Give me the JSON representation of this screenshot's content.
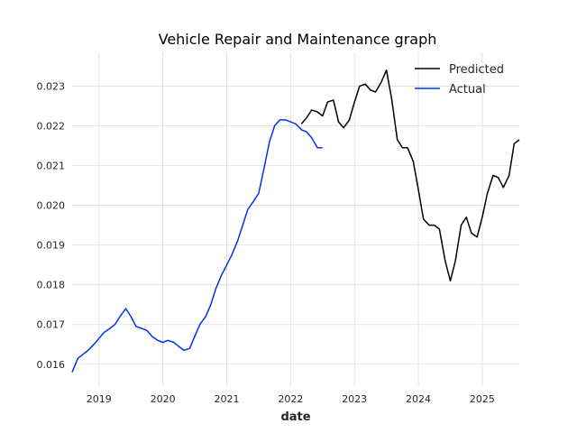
{
  "chart_data": {
    "type": "line",
    "title": "Vehicle Repair and Maintenance graph",
    "xlabel": "date",
    "ylabel": "",
    "xlim": [
      2018.58,
      2025.58
    ],
    "ylim": [
      0.01545,
      0.02385
    ],
    "xticks": [
      2019,
      2020,
      2021,
      2022,
      2023,
      2024,
      2025
    ],
    "xtick_labels": [
      "2019",
      "2020",
      "2021",
      "2022",
      "2023",
      "2024",
      "2025"
    ],
    "yticks": [
      0.016,
      0.017,
      0.018,
      0.019,
      0.02,
      0.021,
      0.022,
      0.023
    ],
    "ytick_labels": [
      "0.016",
      "0.017",
      "0.018",
      "0.019",
      "0.020",
      "0.021",
      "0.022",
      "0.023"
    ],
    "grid": true,
    "legend_position": "top-right",
    "series": [
      {
        "name": "Predicted",
        "color": "#000000",
        "x": [
          2022.17,
          2022.25,
          2022.33,
          2022.42,
          2022.5,
          2022.58,
          2022.67,
          2022.75,
          2022.83,
          2022.92,
          2023.0,
          2023.08,
          2023.17,
          2023.25,
          2023.33,
          2023.42,
          2023.5,
          2023.58,
          2023.67,
          2023.75,
          2023.83,
          2023.92,
          2024.0,
          2024.08,
          2024.17,
          2024.25,
          2024.33,
          2024.42,
          2024.5,
          2024.58,
          2024.67,
          2024.75,
          2024.83,
          2024.92,
          2025.0,
          2025.08,
          2025.17,
          2025.25,
          2025.33,
          2025.42,
          2025.5,
          2025.58
        ],
        "y": [
          0.02205,
          0.0222,
          0.0224,
          0.02235,
          0.02225,
          0.0226,
          0.02265,
          0.0221,
          0.02195,
          0.02215,
          0.0226,
          0.023,
          0.02305,
          0.0229,
          0.02285,
          0.0231,
          0.0234,
          0.0227,
          0.02165,
          0.02145,
          0.02145,
          0.0211,
          0.0204,
          0.01965,
          0.0195,
          0.0195,
          0.0194,
          0.0186,
          0.0181,
          0.0186,
          0.0195,
          0.0197,
          0.0193,
          0.0192,
          0.0197,
          0.0203,
          0.02075,
          0.0207,
          0.02045,
          0.02075,
          0.02155,
          0.02165
        ]
      },
      {
        "name": "Actual",
        "color": "#0033ee",
        "x": [
          2018.58,
          2018.67,
          2018.75,
          2018.83,
          2018.92,
          2019.0,
          2019.08,
          2019.17,
          2019.25,
          2019.33,
          2019.42,
          2019.5,
          2019.58,
          2019.67,
          2019.75,
          2019.83,
          2019.92,
          2020.0,
          2020.08,
          2020.17,
          2020.25,
          2020.33,
          2020.42,
          2020.5,
          2020.58,
          2020.67,
          2020.75,
          2020.83,
          2020.92,
          2021.0,
          2021.08,
          2021.17,
          2021.25,
          2021.33,
          2021.42,
          2021.5,
          2021.58,
          2021.67,
          2021.75,
          2021.83,
          2021.92,
          2022.0,
          2022.08,
          2022.17,
          2022.25,
          2022.33,
          2022.42,
          2022.5
        ],
        "y": [
          0.0158,
          0.01615,
          0.01625,
          0.01635,
          0.0165,
          0.01665,
          0.0168,
          0.0169,
          0.017,
          0.0172,
          0.0174,
          0.0172,
          0.01695,
          0.0169,
          0.01685,
          0.0167,
          0.0166,
          0.01655,
          0.0166,
          0.01655,
          0.01645,
          0.01635,
          0.0164,
          0.0167,
          0.017,
          0.0172,
          0.0175,
          0.0179,
          0.01825,
          0.0185,
          0.01875,
          0.0191,
          0.0195,
          0.0199,
          0.0201,
          0.0203,
          0.0209,
          0.0216,
          0.022,
          0.02215,
          0.02215,
          0.0221,
          0.02205,
          0.0219,
          0.02185,
          0.0217,
          0.02145,
          0.02145
        ]
      }
    ]
  }
}
